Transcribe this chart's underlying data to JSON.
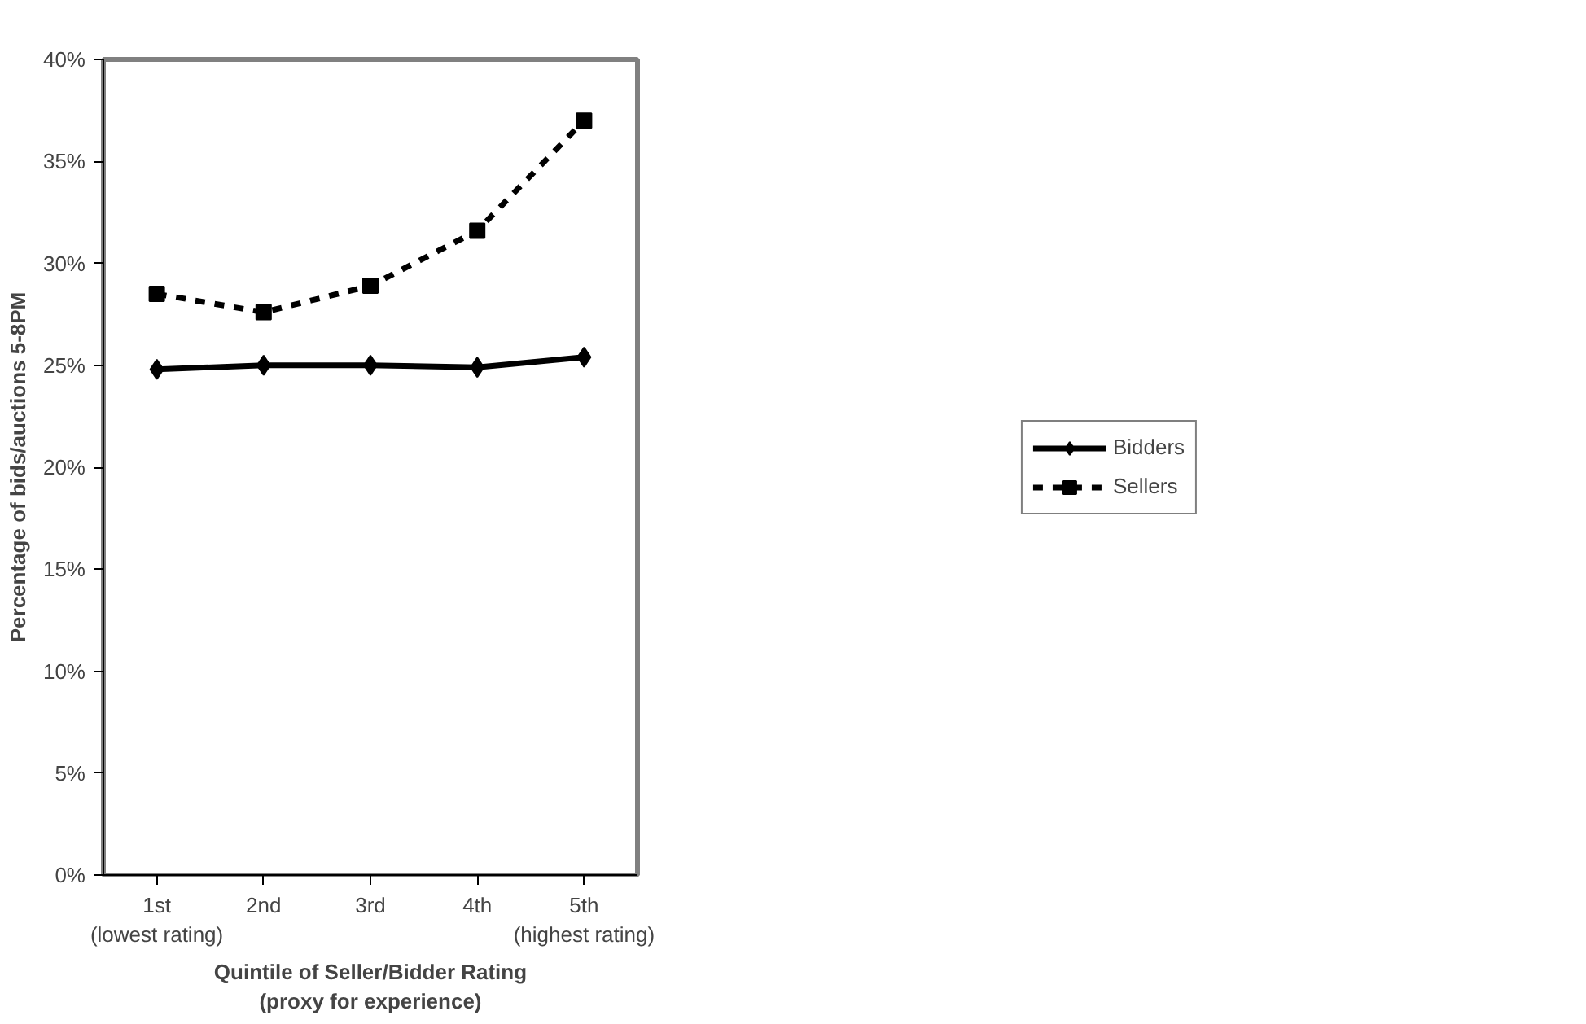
{
  "chart_data": {
    "type": "line",
    "xlabel": "Quintile of Seller/Bidder Rating\n(proxy for experience)",
    "ylabel": "Percentage of bids/auctions 5-8PM",
    "categories": [
      "1st\n(lowest rating)",
      "2nd",
      "3rd",
      "4th",
      "5th\n(highest rating)"
    ],
    "series": [
      {
        "name": "Bidders",
        "color": "#000000",
        "values": [
          24.8,
          25.0,
          25.0,
          24.9,
          25.4
        ],
        "marker": "diamond",
        "line_style": "solid"
      },
      {
        "name": "Sellers",
        "color": "#000000",
        "values": [
          28.5,
          27.6,
          28.9,
          31.6,
          37.0
        ],
        "marker": "square",
        "line_style": "dashed"
      }
    ],
    "ylim": [
      0,
      40
    ],
    "yticks": [
      {
        "value": 0,
        "label": "0%"
      },
      {
        "value": 5,
        "label": "5%"
      },
      {
        "value": 10,
        "label": "10%"
      },
      {
        "value": 15,
        "label": "15%"
      },
      {
        "value": 20,
        "label": "20%"
      },
      {
        "value": 25,
        "label": "25%"
      },
      {
        "value": 30,
        "label": "30%"
      },
      {
        "value": 35,
        "label": "35%"
      },
      {
        "value": 40,
        "label": "40%"
      }
    ],
    "grid": false,
    "legend": "right"
  }
}
